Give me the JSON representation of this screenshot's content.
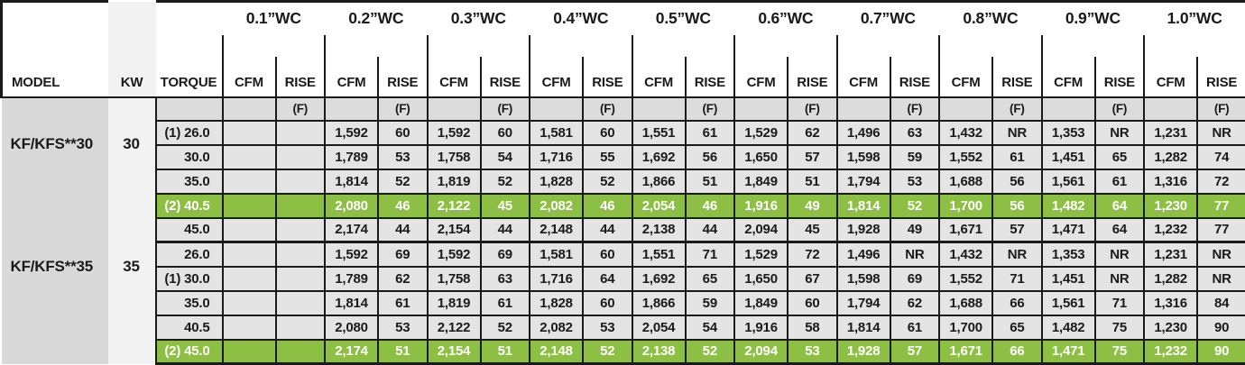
{
  "table": {
    "column_headers": {
      "model": "MODEL",
      "kw": "KW",
      "torque": "TORQUE",
      "cfm": "CFM",
      "rise": "RISE",
      "rise_unit": "(F)"
    },
    "pressure_headers": [
      "0.1”WC",
      "0.2”WC",
      "0.3”WC",
      "0.4”WC",
      "0.5”WC",
      "0.6”WC",
      "0.7”WC",
      "0.8”WC",
      "0.9”WC",
      "1.0”WC"
    ],
    "groups": [
      {
        "model": "KF/KFS**30",
        "kw": "30",
        "rows": [
          {
            "torque": "(1) 26.0",
            "highlight": false,
            "values": [
              [
                "",
                ""
              ],
              [
                "1,592",
                "60"
              ],
              [
                "1,592",
                "60"
              ],
              [
                "1,581",
                "60"
              ],
              [
                "1,551",
                "61"
              ],
              [
                "1,529",
                "62"
              ],
              [
                "1,496",
                "63"
              ],
              [
                "1,432",
                "NR"
              ],
              [
                "1,353",
                "NR"
              ],
              [
                "1,231",
                "NR"
              ]
            ]
          },
          {
            "torque": "30.0",
            "highlight": false,
            "values": [
              [
                "",
                ""
              ],
              [
                "1,789",
                "53"
              ],
              [
                "1,758",
                "54"
              ],
              [
                "1,716",
                "55"
              ],
              [
                "1,692",
                "56"
              ],
              [
                "1,650",
                "57"
              ],
              [
                "1,598",
                "59"
              ],
              [
                "1,552",
                "61"
              ],
              [
                "1,451",
                "65"
              ],
              [
                "1,282",
                "74"
              ]
            ]
          },
          {
            "torque": "35.0",
            "highlight": false,
            "values": [
              [
                "",
                ""
              ],
              [
                "1,814",
                "52"
              ],
              [
                "1,819",
                "52"
              ],
              [
                "1,828",
                "52"
              ],
              [
                "1,866",
                "51"
              ],
              [
                "1,849",
                "51"
              ],
              [
                "1,794",
                "53"
              ],
              [
                "1,688",
                "56"
              ],
              [
                "1,561",
                "61"
              ],
              [
                "1,316",
                "72"
              ]
            ]
          },
          {
            "torque": "(2) 40.5",
            "highlight": true,
            "values": [
              [
                "",
                ""
              ],
              [
                "2,080",
                "46"
              ],
              [
                "2,122",
                "45"
              ],
              [
                "2,082",
                "46"
              ],
              [
                "2,054",
                "46"
              ],
              [
                "1,916",
                "49"
              ],
              [
                "1,814",
                "52"
              ],
              [
                "1,700",
                "56"
              ],
              [
                "1,482",
                "64"
              ],
              [
                "1,230",
                "77"
              ]
            ]
          },
          {
            "torque": "45.0",
            "highlight": false,
            "values": [
              [
                "",
                ""
              ],
              [
                "2,174",
                "44"
              ],
              [
                "2,154",
                "44"
              ],
              [
                "2,148",
                "44"
              ],
              [
                "2,138",
                "44"
              ],
              [
                "2,094",
                "45"
              ],
              [
                "1,928",
                "49"
              ],
              [
                "1,671",
                "57"
              ],
              [
                "1,471",
                "64"
              ],
              [
                "1,232",
                "77"
              ]
            ]
          }
        ]
      },
      {
        "model": "KF/KFS**35",
        "kw": "35",
        "rows": [
          {
            "torque": "26.0",
            "highlight": false,
            "values": [
              [
                "",
                ""
              ],
              [
                "1,592",
                "69"
              ],
              [
                "1,592",
                "69"
              ],
              [
                "1,581",
                "60"
              ],
              [
                "1,551",
                "71"
              ],
              [
                "1,529",
                "72"
              ],
              [
                "1,496",
                "NR"
              ],
              [
                "1,432",
                "NR"
              ],
              [
                "1,353",
                "NR"
              ],
              [
                "1,231",
                "NR"
              ]
            ]
          },
          {
            "torque": "(1) 30.0",
            "highlight": false,
            "values": [
              [
                "",
                ""
              ],
              [
                "1,789",
                "62"
              ],
              [
                "1,758",
                "63"
              ],
              [
                "1,716",
                "64"
              ],
              [
                "1,692",
                "65"
              ],
              [
                "1,650",
                "67"
              ],
              [
                "1,598",
                "69"
              ],
              [
                "1,552",
                "71"
              ],
              [
                "1,451",
                "NR"
              ],
              [
                "1,282",
                "NR"
              ]
            ]
          },
          {
            "torque": "35.0",
            "highlight": false,
            "values": [
              [
                "",
                ""
              ],
              [
                "1,814",
                "61"
              ],
              [
                "1,819",
                "61"
              ],
              [
                "1,828",
                "60"
              ],
              [
                "1,866",
                "59"
              ],
              [
                "1,849",
                "60"
              ],
              [
                "1,794",
                "62"
              ],
              [
                "1,688",
                "66"
              ],
              [
                "1,561",
                "71"
              ],
              [
                "1,316",
                "84"
              ]
            ]
          },
          {
            "torque": "40.5",
            "highlight": false,
            "values": [
              [
                "",
                ""
              ],
              [
                "2,080",
                "53"
              ],
              [
                "2,122",
                "52"
              ],
              [
                "2,082",
                "53"
              ],
              [
                "2,054",
                "54"
              ],
              [
                "1,916",
                "58"
              ],
              [
                "1,814",
                "61"
              ],
              [
                "1,700",
                "65"
              ],
              [
                "1,482",
                "75"
              ],
              [
                "1,230",
                "90"
              ]
            ]
          },
          {
            "torque": "(2) 45.0",
            "highlight": true,
            "values": [
              [
                "",
                ""
              ],
              [
                "2,174",
                "51"
              ],
              [
                "2,154",
                "51"
              ],
              [
                "2,148",
                "52"
              ],
              [
                "2,138",
                "52"
              ],
              [
                "2,094",
                "53"
              ],
              [
                "1,928",
                "57"
              ],
              [
                "1,671",
                "66"
              ],
              [
                "1,471",
                "75"
              ],
              [
                "1,232",
                "90"
              ]
            ]
          }
        ]
      }
    ]
  },
  "colors": {
    "highlight_green": "#8cbf44",
    "data_row_gray": "#e4e4e4",
    "subheader_gray": "#dcdcdc",
    "model_column_gray": "#d9d9d9",
    "kw_column_gray": "#f2f2f2",
    "border_dark": "#1a1a1a",
    "highlight_text": "#ffffff"
  }
}
